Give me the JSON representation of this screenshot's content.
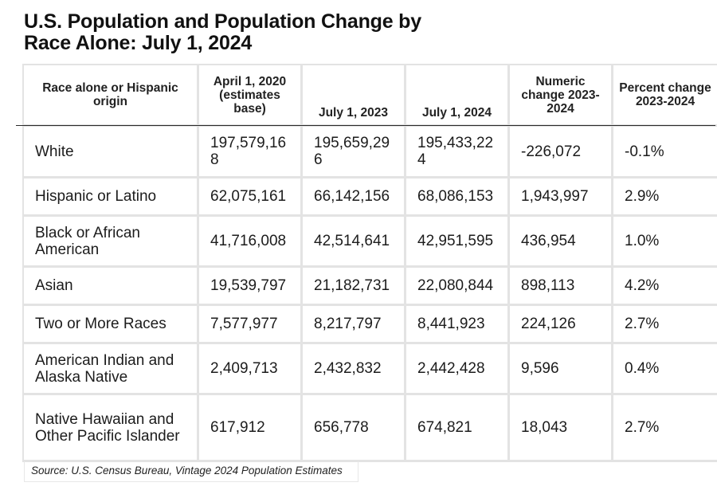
{
  "chart_data": {
    "type": "table",
    "title_lines": [
      "U.S. Population and Population Change by",
      "Race Alone: July 1, 2024"
    ],
    "columns": [
      "Race alone or Hispanic origin",
      "April 1, 2020 (estimates base)",
      "July 1, 2023",
      "July 1, 2024",
      "Numeric change 2023-2024",
      "Percent change 2023-2024"
    ],
    "rows": [
      [
        "White",
        "197,579,168",
        "195,659,296",
        "195,433,224",
        "-226,072",
        "-0.1%"
      ],
      [
        "Hispanic or Latino",
        "62,075,161",
        "66,142,156",
        "68,086,153",
        "1,943,997",
        "2.9%"
      ],
      [
        "Black or African American",
        "41,716,008",
        "42,514,641",
        "42,951,595",
        "436,954",
        "1.0%"
      ],
      [
        "Asian",
        "19,539,797",
        "21,182,731",
        "22,080,844",
        "898,113",
        "4.2%"
      ],
      [
        "Two or More Races",
        "7,577,977",
        "8,217,797",
        "8,441,923",
        "224,126",
        "2.7%"
      ],
      [
        "American Indian and Alaska Native",
        "2,409,713",
        "2,432,832",
        "2,442,428",
        "9,596",
        "0.4%"
      ],
      [
        "Native Hawaiian and Other Pacific Islander",
        "617,912",
        "656,778",
        "674,821",
        "18,043",
        "2.7%"
      ]
    ],
    "source": "Source: U.S. Census Bureau, Vintage 2024 Population Estimates"
  }
}
